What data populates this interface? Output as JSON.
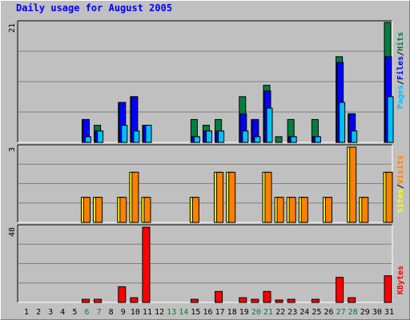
{
  "title": "Daily usage for August 2005",
  "colors": {
    "hits": "#008040",
    "files": "#0000ff",
    "pages": "#00c0ff",
    "visits": "#ff8000",
    "sites": "#ffff00",
    "kbytes": "#ff0000",
    "weekend": "#008040",
    "weekday": "#000000"
  },
  "chart_data": {
    "type": "bar",
    "title": "Daily usage for August 2005",
    "categories": [
      "1",
      "2",
      "3",
      "4",
      "5",
      "6",
      "7",
      "8",
      "9",
      "10",
      "11",
      "12",
      "13",
      "14",
      "15",
      "16",
      "17",
      "18",
      "19",
      "20",
      "21",
      "22",
      "23",
      "24",
      "25",
      "26",
      "27",
      "28",
      "29",
      "30",
      "31"
    ],
    "weekend_days": [
      "6",
      "7",
      "13",
      "14",
      "20",
      "21",
      "27",
      "28"
    ],
    "panels": [
      {
        "name": "hits-files-pages",
        "max_label": "21",
        "ylim": [
          0,
          21
        ],
        "legend": [
          "Pages",
          "/",
          "Files",
          "/",
          "Hits"
        ],
        "series": [
          {
            "name": "Hits",
            "values": [
              0,
              0,
              0,
              0,
              0,
              4,
              3,
              0,
              7,
              8,
              3,
              0,
              0,
              0,
              4,
              3,
              4,
              0,
              8,
              4,
              10,
              1,
              4,
              0,
              4,
              0,
              15,
              5,
              0,
              0,
              21
            ]
          },
          {
            "name": "Files",
            "values": [
              0,
              0,
              0,
              0,
              0,
              4,
              2,
              0,
              7,
              8,
              3,
              0,
              0,
              0,
              1,
              2,
              2,
              0,
              5,
              4,
              9,
              0,
              1,
              0,
              1,
              0,
              14,
              5,
              0,
              0,
              15
            ]
          },
          {
            "name": "Pages",
            "values": [
              0,
              0,
              0,
              0,
              0,
              1,
              2,
              0,
              3,
              2,
              3,
              0,
              0,
              0,
              1,
              2,
              2,
              0,
              2,
              1,
              6,
              0,
              1,
              0,
              1,
              0,
              7,
              2,
              0,
              0,
              8
            ]
          }
        ]
      },
      {
        "name": "visits-sites",
        "max_label": "3",
        "ylim": [
          0,
          3
        ],
        "legend": [
          "Sites",
          "/",
          "Visits"
        ],
        "series": [
          {
            "name": "Visits",
            "values": [
              0,
              0,
              0,
              0,
              0,
              1,
              1,
              0,
              1,
              2,
              1,
              0,
              0,
              0,
              1,
              0,
              2,
              2,
              0,
              0,
              2,
              1,
              1,
              1,
              0,
              1,
              0,
              3,
              1,
              0,
              2
            ]
          },
          {
            "name": "Sites",
            "values": [
              0,
              0,
              0,
              0,
              0,
              1,
              1,
              0,
              1,
              2,
              1,
              0,
              0,
              0,
              1,
              0,
              2,
              2,
              0,
              0,
              2,
              1,
              1,
              1,
              0,
              1,
              0,
              3,
              1,
              0,
              2
            ]
          }
        ]
      },
      {
        "name": "kbytes",
        "max_label": "48",
        "ylim": [
          0,
          48
        ],
        "legend": [
          "KBytes"
        ],
        "series": [
          {
            "name": "KBytes",
            "values": [
              0,
              0,
              0,
              0,
              0,
              2,
              2,
              0,
              10,
              3,
              48,
              0,
              0,
              0,
              2,
              0,
              7,
              0,
              3,
              2,
              7,
              1,
              2,
              0,
              2,
              0,
              16,
              3,
              0,
              0,
              17
            ]
          }
        ]
      }
    ]
  }
}
